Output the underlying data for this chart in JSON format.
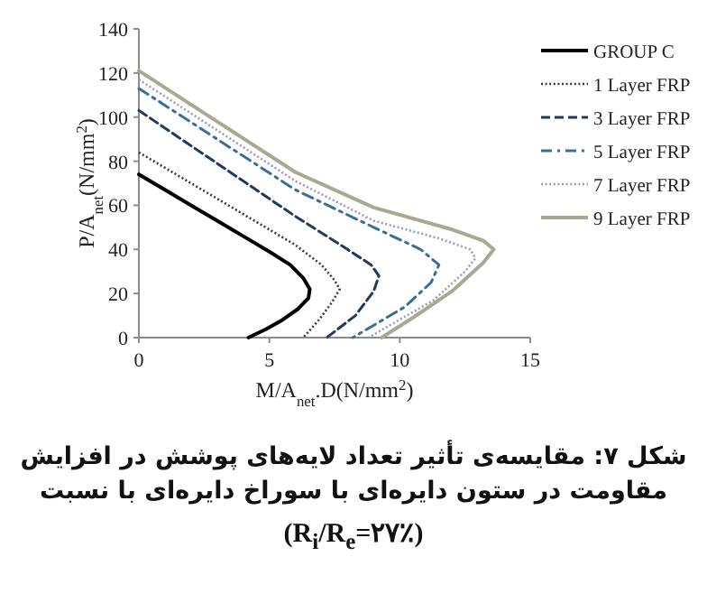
{
  "chart_data": {
    "type": "line",
    "title": "شکل ۷: مقایسه‌ی تأثیر تعداد لایه‌های پوشش در افزایش مقاومت در ستون دایره‌ای با سوراخ دایره‌ای با نسبت",
    "subtitle": "(R$_{i}$/R$_{e}$=۲۷٪)",
    "xlabel": "M/A$_{net}$.D(N/mm$^{2}$)",
    "ylabel": "P/A$_{net}$(N/mm$^{2}$)",
    "xlim": [
      0,
      15
    ],
    "ylim": [
      0,
      140
    ],
    "xticks": [
      0,
      5,
      10,
      15
    ],
    "yticks": [
      0,
      20,
      40,
      60,
      80,
      100,
      120,
      140
    ],
    "legend": "right",
    "marker": "none",
    "series": [
      {
        "name": "GROUP C",
        "color": "#000000",
        "line_style": "solid",
        "x": [
          0,
          1,
          2,
          3,
          4,
          5,
          5.8,
          6.3,
          6.55,
          6.5,
          6.1,
          5.5,
          4.9,
          4.2
        ],
        "values": [
          74,
          67,
          60,
          53,
          46,
          39,
          33,
          27,
          22,
          18,
          13,
          8,
          4,
          0
        ]
      },
      {
        "name": "1 Layer FRP",
        "color": "#3a3a3a",
        "line_style": "dotted",
        "x": [
          0,
          2,
          4,
          6,
          7,
          7.5,
          7.7,
          7.4,
          6.9,
          6.3
        ],
        "values": [
          84,
          70,
          56,
          42,
          33,
          26,
          22,
          16,
          8,
          0
        ]
      },
      {
        "name": "3 Layer FRP",
        "color": "#1f3a5f",
        "line_style": "dashed",
        "x": [
          0,
          2,
          4,
          6,
          8,
          8.9,
          9.2,
          9.0,
          8.3,
          7.2
        ],
        "values": [
          103,
          87,
          71,
          55,
          40,
          33,
          28,
          21,
          10,
          0
        ]
      },
      {
        "name": "5 Layer FRP",
        "color": "#3b6e96",
        "line_style": "dashdot",
        "x": [
          0,
          3,
          6,
          9,
          10.8,
          11.5,
          11.2,
          10.2,
          8.2
        ],
        "values": [
          113,
          90,
          67,
          50,
          40,
          33,
          25,
          14,
          0
        ]
      },
      {
        "name": "7 Layer FRP",
        "color": "#9a9cb5",
        "line_style": "dotted",
        "x": [
          0,
          3,
          6,
          9,
          11.5,
          12.7,
          12.9,
          12.5,
          11.3,
          8.8
        ],
        "values": [
          117,
          94,
          71,
          53,
          45,
          40,
          36,
          30,
          17,
          0
        ]
      },
      {
        "name": "9 Layer FRP",
        "color": "#a9a891",
        "line_style": "solid",
        "x": [
          0,
          3,
          6,
          9,
          12,
          13.2,
          13.6,
          13.2,
          12.0,
          10.5,
          9.3
        ],
        "values": [
          121,
          98,
          75,
          59,
          49,
          44,
          40,
          34,
          21,
          9,
          0
        ]
      }
    ]
  }
}
